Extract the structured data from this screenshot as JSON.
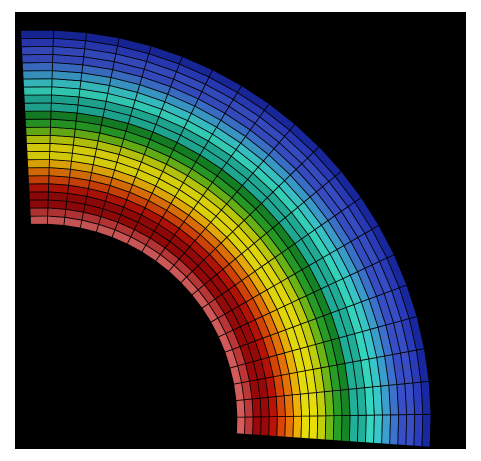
{
  "figure": {
    "type": "finite-element contour plot",
    "shape": "quarter annulus mesh",
    "background_color": "#000000",
    "frame_color": "#ffffff",
    "mesh_line_color": "#000000",
    "contour_levels": [
      "#1a2aa8",
      "#2c3ec4",
      "#3a52d0",
      "#3f78d8",
      "#3fa6d8",
      "#3cd0d4",
      "#38e0c8",
      "#22b8a0",
      "#168c28",
      "#2aa628",
      "#70c018",
      "#c8d80c",
      "#f0e60c",
      "#f8b808",
      "#f07808",
      "#e04808",
      "#c01408",
      "#a00a0a",
      "#c83a3a",
      "#e06060"
    ]
  }
}
